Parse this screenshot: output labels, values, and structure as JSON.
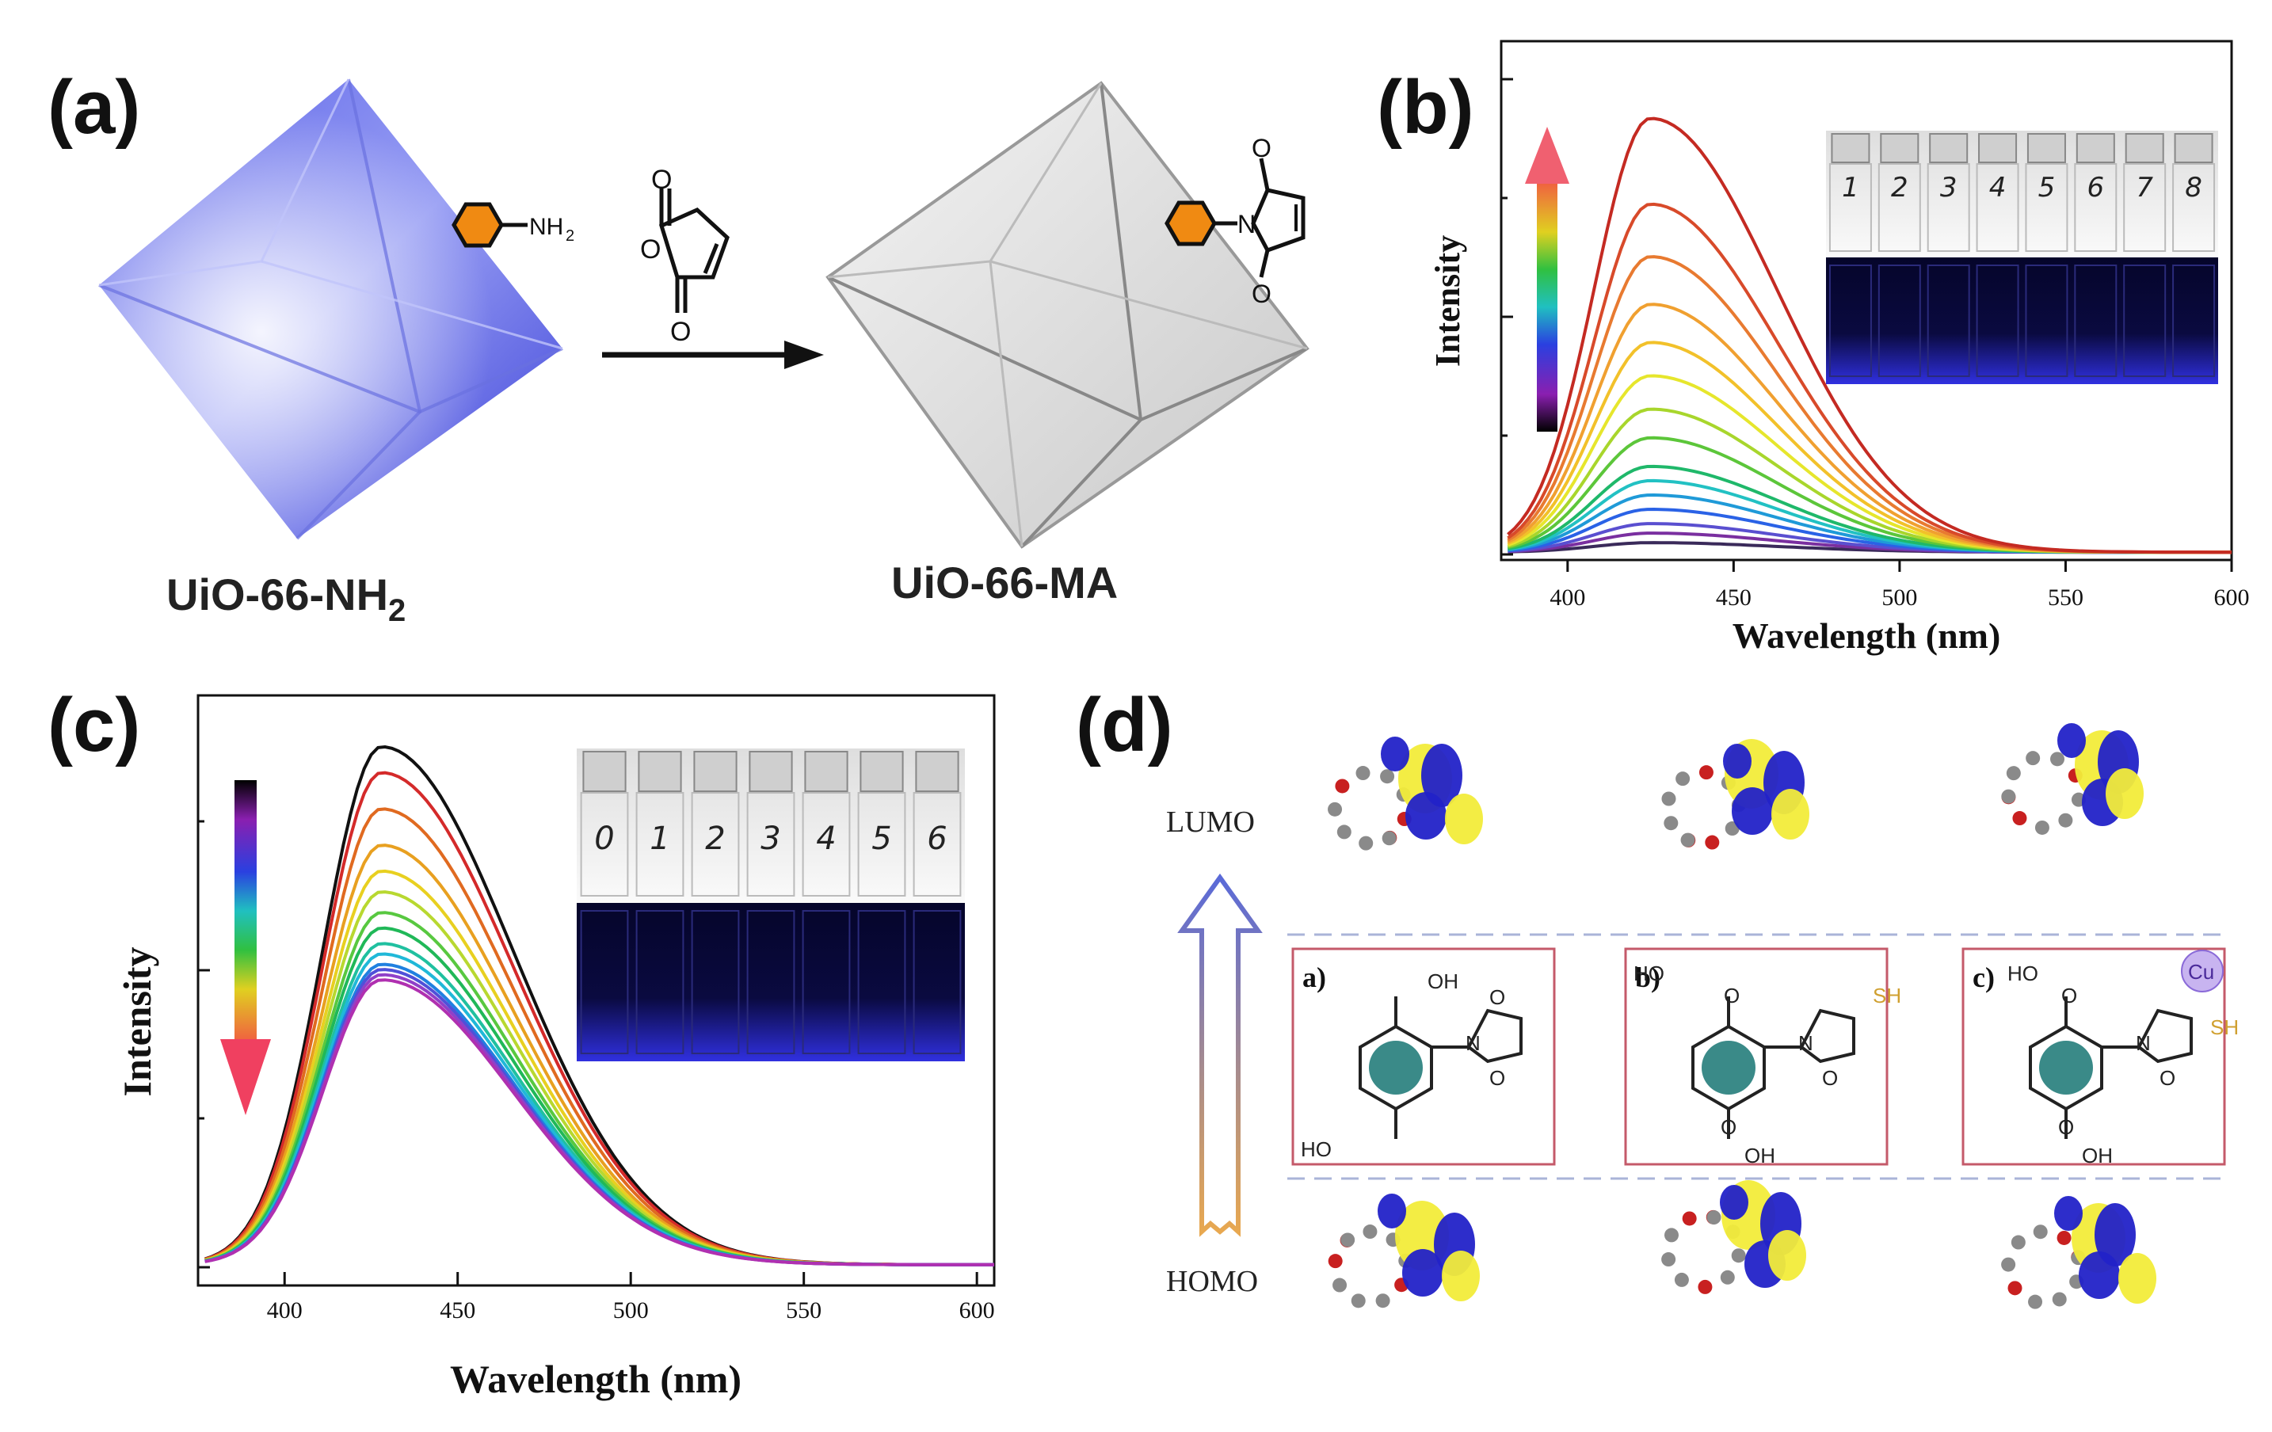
{
  "figure": {
    "panel_labels": {
      "a": "(a)",
      "b": "(b)",
      "c": "(c)",
      "d": "(d)"
    }
  },
  "panel_a": {
    "left_material": "UiO-66-NH",
    "left_subscript": "2",
    "right_material": "UiO-66-MA",
    "amine_group": "NH",
    "amine_subscript": "2",
    "reagent_atoms": [
      "O",
      "O",
      "O"
    ],
    "product_atoms": [
      "O",
      "N",
      "O"
    ]
  },
  "panel_b": {
    "vial_numbers": [
      "1",
      "2",
      "3",
      "4",
      "5",
      "6",
      "7",
      "8"
    ],
    "trend": "increasing",
    "chart_data": {
      "type": "line",
      "title": "",
      "xlabel": "Wavelength (nm)",
      "ylabel": "Intensity",
      "xlim": [
        380,
        600
      ],
      "ylim": [
        0,
        1
      ],
      "x_ticks": [
        "400",
        "450",
        "500",
        "550",
        "600"
      ],
      "peak_wavelength": 425,
      "peak_intensities": [
        0.02,
        0.04,
        0.06,
        0.09,
        0.12,
        0.15,
        0.18,
        0.24,
        0.3,
        0.37,
        0.44,
        0.52,
        0.62,
        0.73,
        0.91
      ],
      "series_colors": [
        "#3a2a5a",
        "#7a2fa0",
        "#5a4fd0",
        "#2a62e6",
        "#1f9ad8",
        "#22c1c3",
        "#1fb86a",
        "#5cc63a",
        "#a8d62c",
        "#e6e62c",
        "#f2c12a",
        "#f0a030",
        "#e87a30",
        "#d84a2a",
        "#c42a22"
      ]
    }
  },
  "panel_c": {
    "vial_numbers": [
      "0",
      "1",
      "2",
      "3",
      "4",
      "5",
      "6"
    ],
    "trend": "decreasing",
    "chart_data": {
      "type": "line",
      "title": "",
      "xlabel": "Wavelength (nm)",
      "ylabel": "Intensity",
      "xlim": [
        375,
        605
      ],
      "ylim": [
        0,
        1
      ],
      "x_ticks": [
        "400",
        "450",
        "500",
        "550",
        "600"
      ],
      "peak_wavelength": 428,
      "peak_intensities": [
        1.0,
        0.95,
        0.88,
        0.81,
        0.76,
        0.72,
        0.68,
        0.65,
        0.62,
        0.6,
        0.58,
        0.57,
        0.56,
        0.55
      ],
      "series_colors": [
        "#111111",
        "#d42a2a",
        "#e06a20",
        "#e8a020",
        "#e8d020",
        "#b8d830",
        "#58c840",
        "#20b858",
        "#20c0a0",
        "#20b8d8",
        "#2080e0",
        "#5050d8",
        "#9040c8",
        "#b030b0"
      ]
    }
  },
  "panel_d": {
    "lumo_label": "LUMO",
    "homo_label": "HOMO",
    "structures": [
      {
        "tag": "a)",
        "groups": [
          "OH",
          "HO",
          "O",
          "N",
          "O"
        ]
      },
      {
        "tag": "b)",
        "groups": [
          "HO",
          "O",
          "OH",
          "O",
          "N",
          "O",
          "SH"
        ]
      },
      {
        "tag": "c)",
        "groups": [
          "HO",
          "O",
          "OH",
          "O",
          "N",
          "O",
          "SH",
          "Cu"
        ]
      }
    ]
  }
}
